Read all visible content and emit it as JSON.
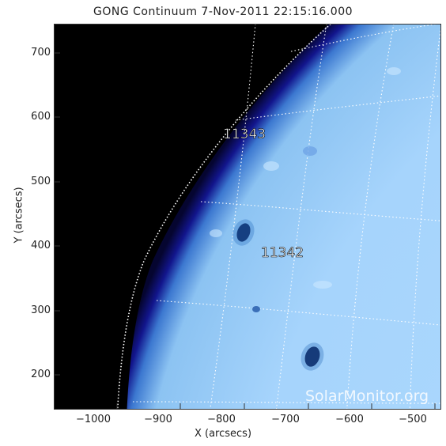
{
  "title": "GONG Continuum   7-Nov-2011  22:15:16.000",
  "x_axis_label": "X (arcsecs)",
  "y_axis_label": "Y (arcsecs)",
  "x_ticks": [
    "−1000",
    "−900",
    "−800",
    "−700",
    "−600",
    "−500"
  ],
  "y_ticks": [
    "700",
    "600",
    "500",
    "400",
    "300",
    "200"
  ],
  "regions": [
    {
      "id": "11343"
    },
    {
      "id": "11342"
    }
  ],
  "watermark": "SolarMonitor.org",
  "colors": {
    "disk": "#a6d6ff",
    "limb": "#0a0a8a",
    "space": "#000000",
    "sunspot": "#002050"
  }
}
